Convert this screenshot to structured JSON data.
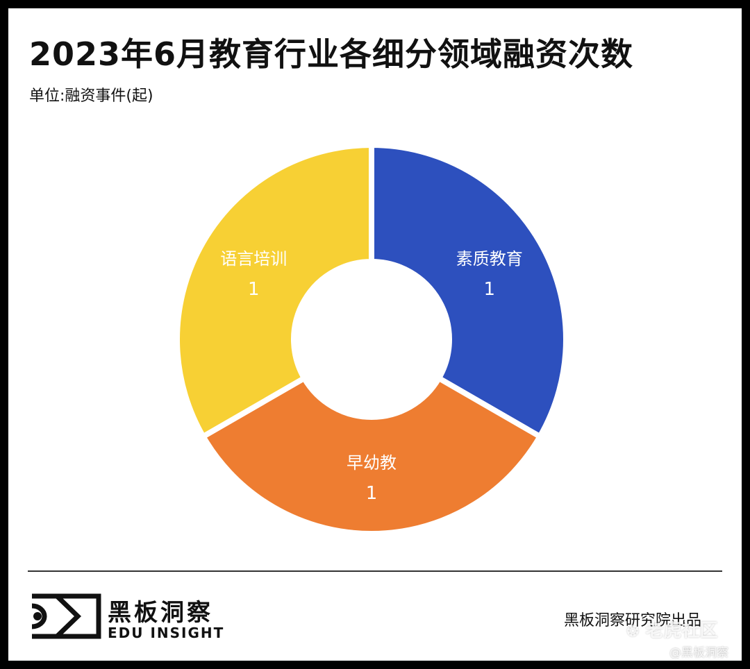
{
  "header": {
    "title": "2023年6月教育行业各细分领域融资次数",
    "subtitle": "单位:融资事件(起)"
  },
  "chart_data": {
    "type": "pie",
    "title": "2023年6月教育行业各细分领域融资次数",
    "subtitle": "单位:融资事件(起)",
    "donut": true,
    "categories": [
      "素质教育",
      "早幼教",
      "语言培训"
    ],
    "values": [
      1,
      1,
      1
    ],
    "colors": [
      "#2D50BE",
      "#EE7D31",
      "#F7D034"
    ],
    "label_color": "#FFFFFF",
    "start": "top, clockwise",
    "legend": "none (labels on slices)"
  },
  "footer": {
    "brand_cn": "黑板洞察",
    "brand_en": "EDU INSIGHT",
    "source": "黑板洞察研究院出品"
  },
  "watermark": {
    "site": "老虎社区",
    "site_icon": "tiger-paw-icon",
    "account": "@黑板洞察"
  }
}
